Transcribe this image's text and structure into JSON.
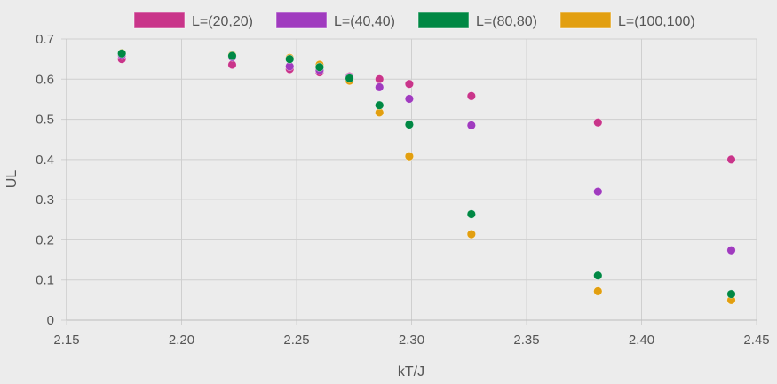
{
  "chart_data": {
    "type": "scatter",
    "title": "",
    "xlabel": "kT/J",
    "ylabel": "UL",
    "xlim": [
      2.15,
      2.45
    ],
    "ylim": [
      0,
      0.7
    ],
    "xticks": [
      "2.15",
      "2.20",
      "2.25",
      "2.30",
      "2.35",
      "2.40",
      "2.45"
    ],
    "yticks": [
      "0",
      "0.1",
      "0.2",
      "0.3",
      "0.4",
      "0.5",
      "0.6",
      "0.7"
    ],
    "grid": true,
    "legend_position": "top",
    "x": [
      2.174,
      2.222,
      2.247,
      2.26,
      2.273,
      2.286,
      2.299,
      2.326,
      2.381,
      2.439
    ],
    "series": [
      {
        "name": "L=(20,20)",
        "color": "#c9358a",
        "values": [
          0.65,
          0.636,
          0.625,
          0.617,
          0.607,
          0.6,
          0.588,
          0.558,
          0.492,
          0.4
        ]
      },
      {
        "name": "L=(40,40)",
        "color": "#a03bbf",
        "values": [
          0.66,
          0.655,
          0.632,
          0.622,
          0.605,
          0.58,
          0.551,
          0.485,
          0.32,
          0.174
        ]
      },
      {
        "name": "L=(80,80)",
        "color": "#008844",
        "values": [
          0.664,
          0.658,
          0.65,
          0.63,
          0.602,
          0.535,
          0.487,
          0.264,
          0.111,
          0.065
        ]
      },
      {
        "name": "L=(100,100)",
        "color": "#e29f10",
        "values": [
          0.665,
          0.66,
          0.653,
          0.636,
          0.596,
          0.517,
          0.408,
          0.214,
          0.072,
          0.05
        ]
      }
    ]
  }
}
